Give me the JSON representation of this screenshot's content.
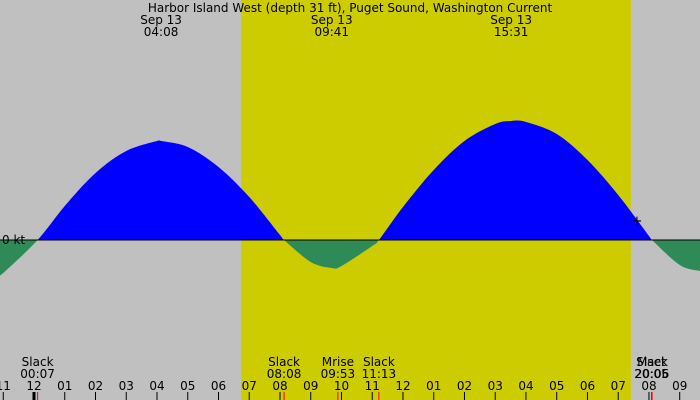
{
  "chart_data": {
    "type": "current",
    "title": "Harbor Island West (depth 31 ft), Puget Sound, Washington Current",
    "zero_label": "0 kt",
    "xlim": [
      -1.106,
      21.66
    ],
    "ylim": [
      -1.6,
      2.4
    ],
    "daylight": [
      6.73,
      19.41
    ],
    "colors": {
      "night": "#c0c0c0",
      "day": "#cccc00",
      "flood": "#0000ff",
      "ebb": "#2e8b57"
    },
    "x": [
      -1.106,
      -1,
      0.117,
      1,
      2,
      3,
      4,
      4.133,
      5,
      6,
      7,
      8,
      8.133,
      9,
      9.683,
      10,
      11,
      11.217,
      12,
      13,
      14,
      15,
      15.517,
      16,
      17,
      18,
      19,
      20,
      20.1,
      21,
      21.66
    ],
    "values": [
      -0.34,
      -0.33,
      0,
      0.34,
      0.67,
      0.89,
      0.99,
      0.99,
      0.93,
      0.73,
      0.43,
      0.05,
      0,
      -0.22,
      -0.28,
      -0.26,
      -0.06,
      0,
      0.33,
      0.7,
      0.99,
      1.16,
      1.19,
      1.18,
      1.06,
      0.8,
      0.45,
      0.04,
      0,
      -0.25,
      -0.31
    ],
    "extremes": [
      {
        "date": "Sep 13",
        "time": "04:08",
        "x": 4.133
      },
      {
        "date": "Sep 13",
        "time": "09:41",
        "x": 9.683
      },
      {
        "date": "Sep 13",
        "time": "15:31",
        "x": 15.517
      }
    ],
    "events": [
      {
        "label": "Slack",
        "time": "00:07",
        "x": 0.117
      },
      {
        "label": "Slack",
        "time": "08:08",
        "x": 8.133
      },
      {
        "label": "Mrise",
        "time": "09:53",
        "x": 9.883
      },
      {
        "label": "Slack",
        "time": "11:13",
        "x": 11.217
      },
      {
        "label": "Mset",
        "time": "20:05",
        "x": 20.083
      },
      {
        "label": "Slack",
        "time": "20:06",
        "x": 20.1
      }
    ],
    "xticks": [
      {
        "value": -1,
        "label": "11"
      },
      {
        "value": 0,
        "label": "12"
      },
      {
        "value": 1,
        "label": "01"
      },
      {
        "value": 2,
        "label": "02"
      },
      {
        "value": 3,
        "label": "03"
      },
      {
        "value": 4,
        "label": "04"
      },
      {
        "value": 5,
        "label": "05"
      },
      {
        "value": 6,
        "label": "06"
      },
      {
        "value": 7,
        "label": "07"
      },
      {
        "value": 8,
        "label": "08"
      },
      {
        "value": 9,
        "label": "09"
      },
      {
        "value": 10,
        "label": "10"
      },
      {
        "value": 11,
        "label": "11"
      },
      {
        "value": 12,
        "label": "12"
      },
      {
        "value": 13,
        "label": "01"
      },
      {
        "value": 14,
        "label": "02"
      },
      {
        "value": 15,
        "label": "03"
      },
      {
        "value": 16,
        "label": "04"
      },
      {
        "value": 17,
        "label": "05"
      },
      {
        "value": 18,
        "label": "06"
      },
      {
        "value": 19,
        "label": "07"
      },
      {
        "value": 20,
        "label": "08"
      },
      {
        "value": 21,
        "label": "09"
      }
    ]
  }
}
